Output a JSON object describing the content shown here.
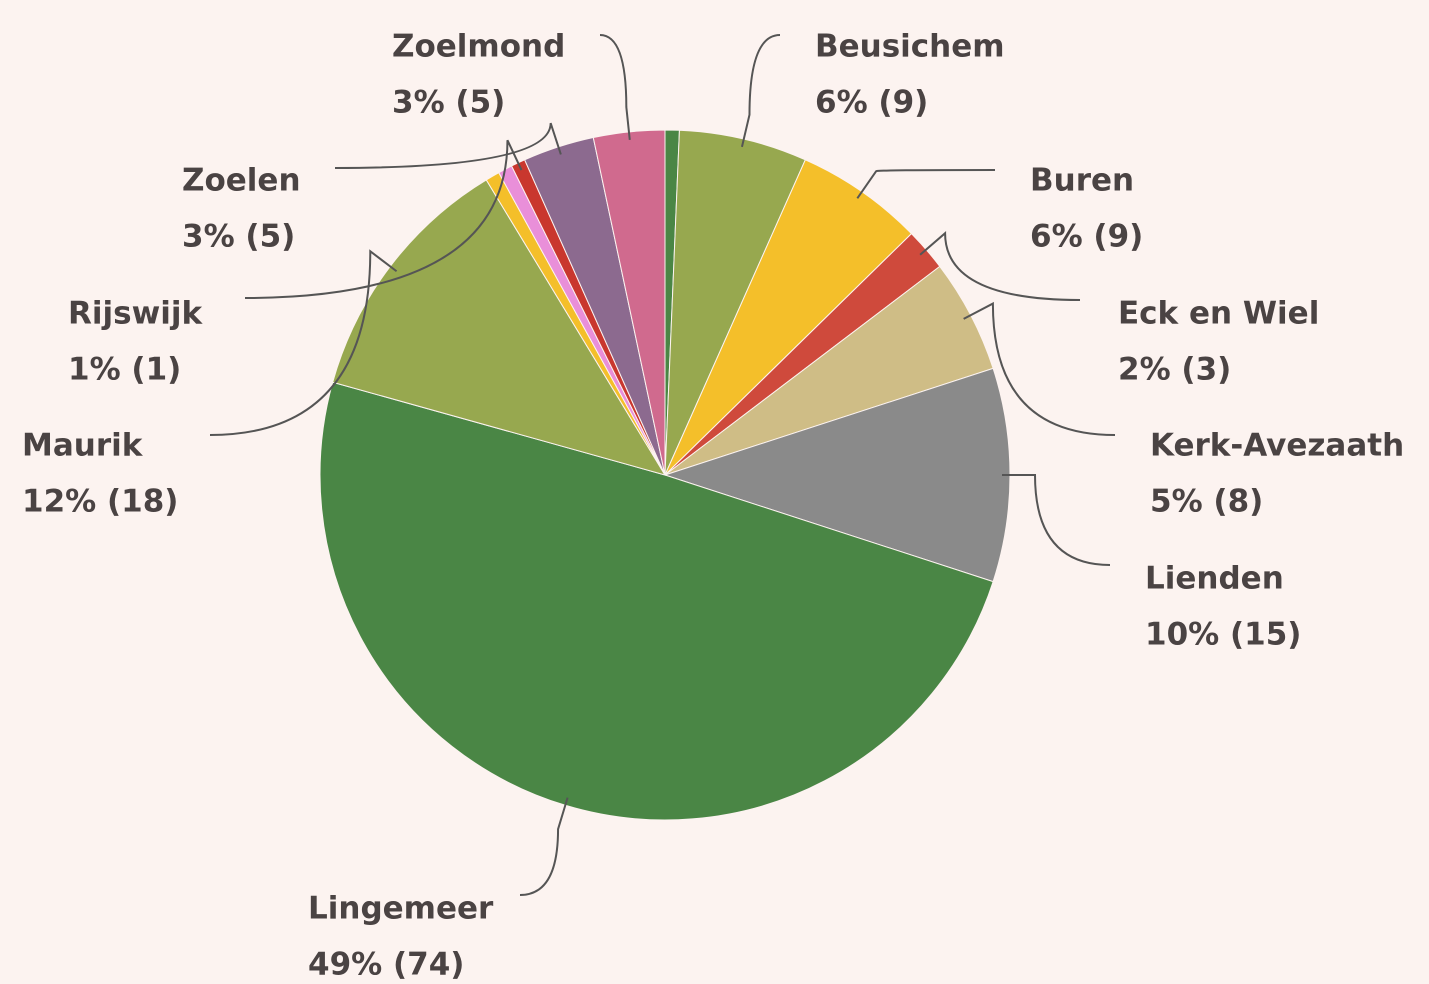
{
  "chart_data": {
    "type": "pie",
    "categories": [
      null,
      "Beusichem",
      "Buren",
      "Eck en Wiel",
      "Kerk-Avezaath",
      "Lienden",
      "Lingemeer",
      "Maurik",
      null,
      null,
      "Rijswijk",
      "Zoelen",
      "Zoelmond"
    ],
    "values": [
      1,
      9,
      9,
      3,
      8,
      15,
      74,
      18,
      1,
      1,
      1,
      5,
      5
    ],
    "value_labels": [
      null,
      "6% (9)",
      "6% (9)",
      "2% (3)",
      "5% (8)",
      "10% (15)",
      "49% (74)",
      "12% (18)",
      null,
      null,
      "1% (1)",
      "3% (5)",
      "3% (5)"
    ],
    "colors": [
      "#4a8645",
      "#97a84f",
      "#f4bf2a",
      "#cf4a3c",
      "#cfbd86",
      "#8a8a8a",
      "#4a8645",
      "#97a84f",
      "#f4bf2a",
      "#e98fd9",
      "#c9372e",
      "#8c6a8f",
      "#d06a8e"
    ]
  }
}
